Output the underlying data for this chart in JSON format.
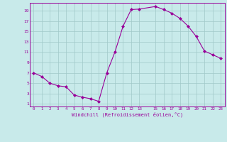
{
  "x": [
    0,
    1,
    2,
    3,
    4,
    5,
    6,
    7,
    8,
    9,
    10,
    11,
    12,
    13,
    15,
    16,
    17,
    18,
    19,
    20,
    21,
    22,
    23
  ],
  "y": [
    7.0,
    6.3,
    5.0,
    4.5,
    4.3,
    2.7,
    2.3,
    2.0,
    1.5,
    7.0,
    11.0,
    16.0,
    19.2,
    19.3,
    19.8,
    19.2,
    18.5,
    17.5,
    16.0,
    14.0,
    11.2,
    10.5,
    9.8
  ],
  "line_color": "#990099",
  "marker": "D",
  "marker_size": 2,
  "bg_color": "#c8eaea",
  "grid_color": "#a0c8c8",
  "tick_color": "#990099",
  "xlabel": "Windchill (Refroidissement éolien,°C)",
  "xlabel_color": "#990099",
  "yticks": [
    1,
    3,
    5,
    7,
    9,
    11,
    13,
    15,
    17,
    19
  ],
  "xticks": [
    0,
    1,
    2,
    3,
    4,
    5,
    6,
    7,
    8,
    9,
    10,
    11,
    12,
    13,
    15,
    16,
    17,
    18,
    19,
    20,
    21,
    22,
    23
  ],
  "ylim": [
    0.5,
    20.5
  ],
  "xlim": [
    -0.5,
    23.5
  ]
}
